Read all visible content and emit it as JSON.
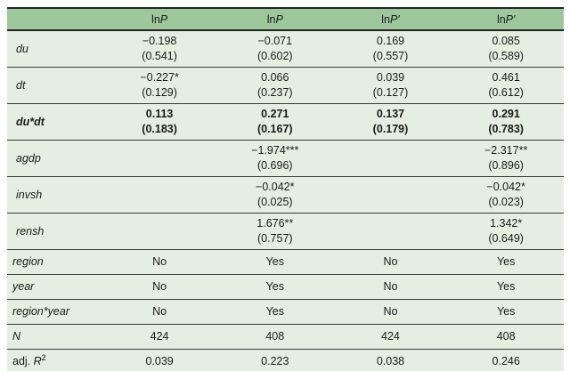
{
  "colors": {
    "header_bg": "#9dc89b",
    "body_bg": "#e5efe1",
    "border_dark": "#232323",
    "row_line": "#3a3a3a",
    "text": "#1a1a1a"
  },
  "table": {
    "header": {
      "corner": "",
      "cols": [
        {
          "prefix": "ln",
          "var": "P",
          "prime": ""
        },
        {
          "prefix": "ln",
          "var": "P",
          "prime": ""
        },
        {
          "prefix": "ln",
          "var": "P",
          "prime": "′"
        },
        {
          "prefix": "ln",
          "var": "P",
          "prime": "′"
        }
      ]
    },
    "coef_rows": [
      {
        "label": "du",
        "cells": [
          {
            "coef": "−0.198",
            "se": "(0.541)"
          },
          {
            "coef": "−0.071",
            "se": "(0.602)"
          },
          {
            "coef": "0.169",
            "se": "(0.557)"
          },
          {
            "coef": "0.085",
            "se": "(0.589)"
          }
        ]
      },
      {
        "label": "dt",
        "cells": [
          {
            "coef": "−0.227*",
            "se": "(0.129)"
          },
          {
            "coef": "0.066",
            "se": "(0.237)"
          },
          {
            "coef": "0.039",
            "se": "(0.127)"
          },
          {
            "coef": "0.461",
            "se": "(0.612)"
          }
        ]
      },
      {
        "label": "du*dt",
        "cells": [
          {
            "coef": "0.113",
            "se": "(0.183)"
          },
          {
            "coef": "0.271",
            "se": "(0.167)"
          },
          {
            "coef": "0.137",
            "se": "(0.179)"
          },
          {
            "coef": "0.291",
            "se": "(0.783)"
          }
        ]
      },
      {
        "label": "agdp",
        "cells": [
          {
            "coef": "",
            "se": ""
          },
          {
            "coef": "−1.974***",
            "se": "(0.696)"
          },
          {
            "coef": "",
            "se": ""
          },
          {
            "coef": "−2.317**",
            "se": "(0.896)"
          }
        ]
      },
      {
        "label": "invsh",
        "cells": [
          {
            "coef": "",
            "se": ""
          },
          {
            "coef": "−0.042*",
            "se": "(0.025)"
          },
          {
            "coef": "",
            "se": ""
          },
          {
            "coef": "−0.042*",
            "se": "(0.023)"
          }
        ]
      },
      {
        "label": "rensh",
        "cells": [
          {
            "coef": "",
            "se": ""
          },
          {
            "coef": "1.676**",
            "se": "(0.757)"
          },
          {
            "coef": "",
            "se": ""
          },
          {
            "coef": "1.342*",
            "se": "(0.649)"
          }
        ]
      }
    ],
    "simple_rows": [
      {
        "label": "region",
        "values": [
          "No",
          "Yes",
          "No",
          "Yes"
        ]
      },
      {
        "label": "year",
        "values": [
          "No",
          "Yes",
          "No",
          "Yes"
        ]
      },
      {
        "label": "region*year",
        "values": [
          "No",
          "Yes",
          "No",
          "Yes"
        ]
      },
      {
        "label": "N",
        "values": [
          "424",
          "408",
          "424",
          "408"
        ]
      }
    ],
    "adj_r2_row": {
      "label_prefix": "adj. ",
      "label_var": "R",
      "label_sup": "2",
      "values": [
        "0.039",
        "0.223",
        "0.038",
        "0.246"
      ]
    }
  }
}
